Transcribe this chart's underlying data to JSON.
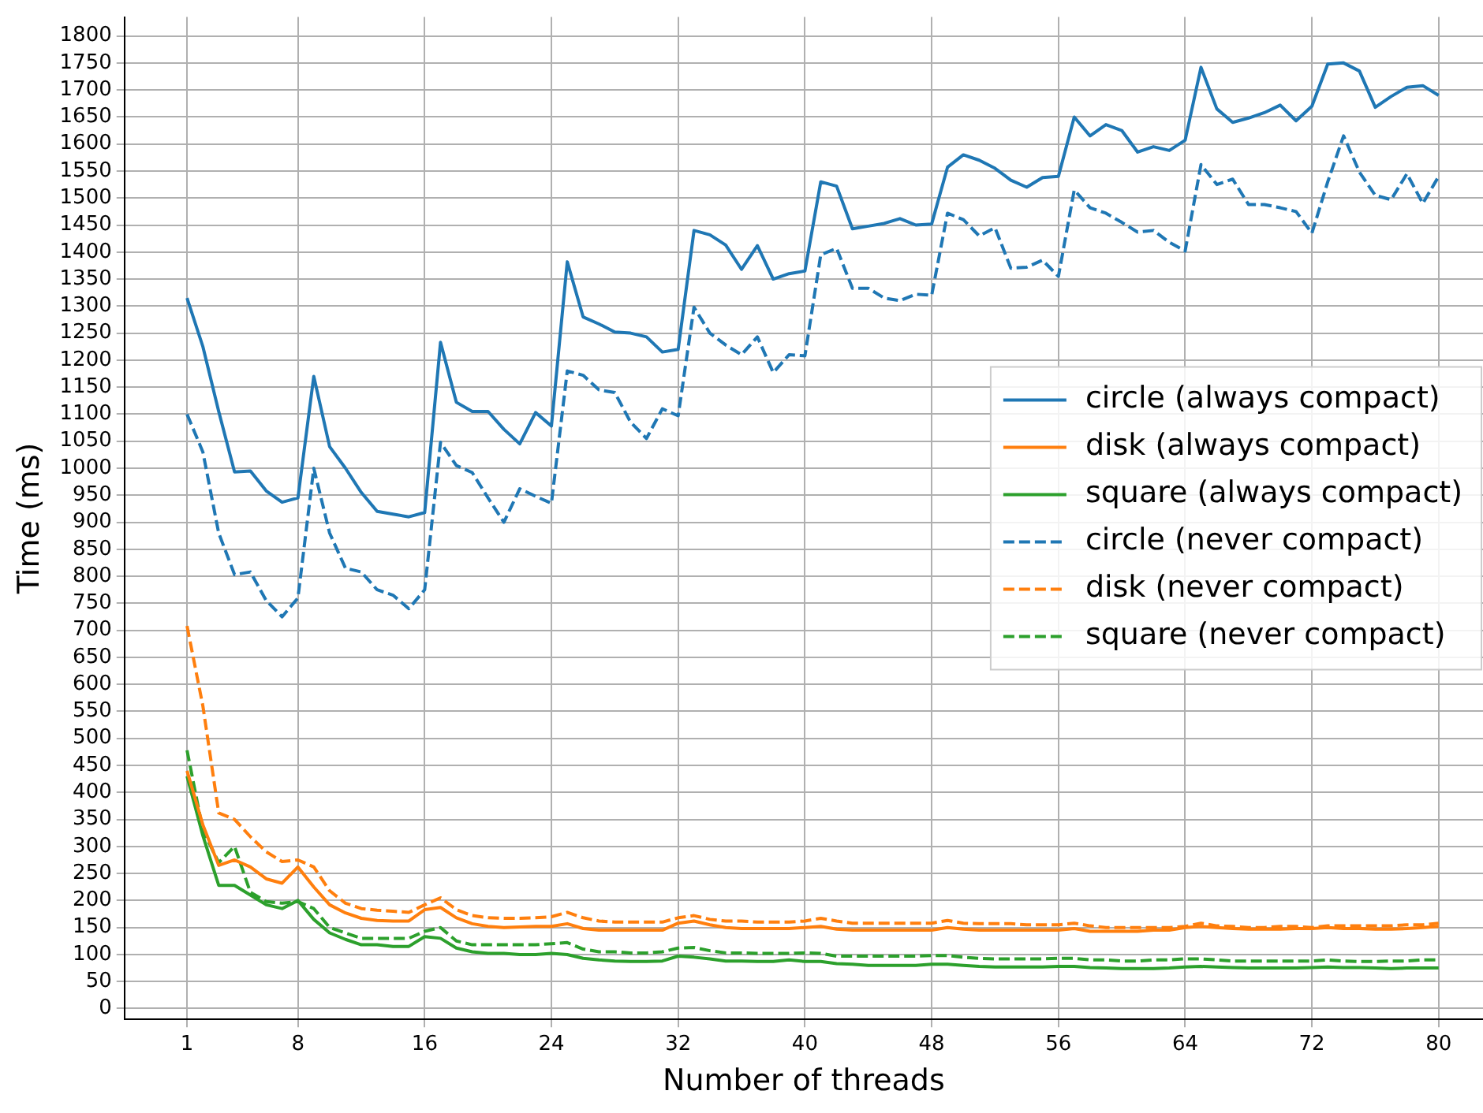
{
  "chart_data": {
    "type": "line",
    "xlabel": "Number of threads",
    "ylabel": "Time (ms)",
    "x": [
      1,
      2,
      3,
      4,
      5,
      6,
      7,
      8,
      9,
      10,
      11,
      12,
      13,
      14,
      15,
      16,
      17,
      18,
      19,
      20,
      21,
      22,
      23,
      24,
      25,
      26,
      27,
      28,
      29,
      30,
      31,
      32,
      33,
      34,
      35,
      36,
      37,
      38,
      39,
      40,
      41,
      42,
      43,
      44,
      45,
      46,
      47,
      48,
      49,
      50,
      51,
      52,
      53,
      54,
      55,
      56,
      57,
      58,
      59,
      60,
      61,
      62,
      63,
      64,
      65,
      66,
      67,
      68,
      69,
      70,
      71,
      72,
      73,
      74,
      75,
      76,
      77,
      78,
      79,
      80
    ],
    "xlim": [
      -2.95,
      82.8
    ],
    "xticks": [
      1,
      8,
      16,
      24,
      32,
      40,
      48,
      56,
      64,
      72,
      80
    ],
    "ylim": [
      -20,
      1835
    ],
    "yticks": [
      0,
      50,
      100,
      150,
      200,
      250,
      300,
      350,
      400,
      450,
      500,
      550,
      600,
      650,
      700,
      750,
      800,
      850,
      900,
      950,
      1000,
      1050,
      1100,
      1150,
      1200,
      1250,
      1300,
      1350,
      1400,
      1450,
      1500,
      1550,
      1600,
      1650,
      1700,
      1750,
      1800
    ],
    "grid": true,
    "legend": "right",
    "marker": "none",
    "series": [
      {
        "name": "circle (always compact)",
        "color": "#1f77b4",
        "line_style": "solid",
        "values": [
          1315,
          1225,
          1105,
          993,
          995,
          958,
          937,
          945,
          1170,
          1040,
          1000,
          955,
          920,
          915,
          910,
          918,
          1233,
          1122,
          1105,
          1105,
          1072,
          1045,
          1103,
          1078,
          1382,
          1280,
          1267,
          1252,
          1250,
          1243,
          1215,
          1220,
          1440,
          1432,
          1413,
          1368,
          1412,
          1350,
          1360,
          1365,
          1530,
          1522,
          1443,
          1448,
          1453,
          1462,
          1450,
          1452,
          1557,
          1580,
          1570,
          1555,
          1533,
          1520,
          1538,
          1540,
          1650,
          1615,
          1636,
          1625,
          1585,
          1595,
          1588,
          1607,
          1742,
          1665,
          1640,
          1648,
          1658,
          1672,
          1643,
          1670,
          1748,
          1750,
          1735,
          1668,
          1688,
          1705,
          1708,
          1690
        ]
      },
      {
        "name": "disk (always compact)",
        "color": "#ff7f0e",
        "line_style": "solid",
        "values": [
          440,
          340,
          265,
          275,
          262,
          240,
          232,
          262,
          225,
          192,
          177,
          167,
          163,
          162,
          162,
          183,
          187,
          168,
          157,
          152,
          150,
          151,
          152,
          152,
          157,
          148,
          145,
          145,
          145,
          145,
          145,
          158,
          162,
          155,
          150,
          148,
          148,
          148,
          148,
          150,
          152,
          147,
          145,
          145,
          145,
          145,
          145,
          145,
          150,
          147,
          145,
          145,
          145,
          145,
          145,
          145,
          148,
          143,
          143,
          143,
          143,
          145,
          145,
          150,
          152,
          150,
          148,
          147,
          147,
          147,
          148,
          148,
          150,
          148,
          148,
          147,
          147,
          148,
          150,
          152
        ]
      },
      {
        "name": "square (always compact)",
        "color": "#2ca02c",
        "line_style": "solid",
        "values": [
          430,
          320,
          228,
          228,
          210,
          192,
          185,
          200,
          165,
          140,
          128,
          118,
          118,
          115,
          115,
          133,
          130,
          112,
          105,
          102,
          102,
          100,
          100,
          102,
          100,
          93,
          90,
          88,
          87,
          87,
          88,
          97,
          95,
          92,
          88,
          88,
          87,
          87,
          90,
          87,
          87,
          83,
          82,
          80,
          80,
          80,
          80,
          82,
          82,
          80,
          78,
          77,
          77,
          77,
          77,
          78,
          78,
          76,
          75,
          74,
          74,
          74,
          75,
          77,
          78,
          77,
          76,
          75,
          75,
          75,
          75,
          76,
          77,
          76,
          76,
          75,
          74,
          75,
          75,
          75
        ]
      },
      {
        "name": "circle (never compact)",
        "color": "#1f77b4",
        "line_style": "dashed",
        "values": [
          1100,
          1030,
          880,
          803,
          808,
          755,
          725,
          760,
          1000,
          880,
          815,
          808,
          775,
          765,
          740,
          775,
          1048,
          1005,
          992,
          945,
          900,
          962,
          948,
          935,
          1180,
          1172,
          1145,
          1140,
          1085,
          1055,
          1110,
          1097,
          1298,
          1250,
          1228,
          1210,
          1243,
          1177,
          1210,
          1208,
          1395,
          1407,
          1333,
          1333,
          1315,
          1310,
          1322,
          1320,
          1472,
          1460,
          1430,
          1445,
          1370,
          1372,
          1385,
          1355,
          1515,
          1482,
          1472,
          1455,
          1437,
          1440,
          1418,
          1402,
          1562,
          1525,
          1535,
          1488,
          1488,
          1482,
          1475,
          1435,
          1530,
          1615,
          1548,
          1505,
          1497,
          1545,
          1490,
          1540
        ]
      },
      {
        "name": "disk (never compact)",
        "color": "#ff7f0e",
        "line_style": "dashed",
        "values": [
          708,
          560,
          362,
          350,
          318,
          290,
          272,
          275,
          262,
          218,
          195,
          185,
          182,
          180,
          178,
          192,
          205,
          183,
          172,
          168,
          167,
          167,
          168,
          170,
          178,
          168,
          162,
          160,
          160,
          160,
          160,
          168,
          172,
          165,
          162,
          162,
          160,
          160,
          160,
          162,
          167,
          162,
          158,
          158,
          158,
          158,
          158,
          158,
          163,
          158,
          157,
          157,
          157,
          155,
          155,
          155,
          158,
          153,
          150,
          150,
          150,
          150,
          150,
          152,
          158,
          153,
          152,
          150,
          150,
          152,
          152,
          150,
          153,
          153,
          153,
          153,
          153,
          155,
          155,
          158
        ]
      },
      {
        "name": "square (never compact)",
        "color": "#2ca02c",
        "line_style": "dashed",
        "values": [
          478,
          330,
          270,
          300,
          215,
          198,
          195,
          198,
          185,
          150,
          140,
          130,
          130,
          130,
          130,
          143,
          150,
          125,
          118,
          118,
          118,
          118,
          118,
          120,
          122,
          110,
          105,
          105,
          103,
          103,
          105,
          112,
          113,
          107,
          103,
          103,
          102,
          102,
          102,
          103,
          102,
          97,
          97,
          97,
          97,
          97,
          97,
          98,
          98,
          95,
          93,
          92,
          92,
          92,
          92,
          93,
          93,
          90,
          90,
          88,
          88,
          90,
          90,
          92,
          92,
          90,
          88,
          88,
          88,
          88,
          88,
          88,
          90,
          88,
          87,
          87,
          88,
          88,
          90,
          90
        ]
      }
    ]
  }
}
